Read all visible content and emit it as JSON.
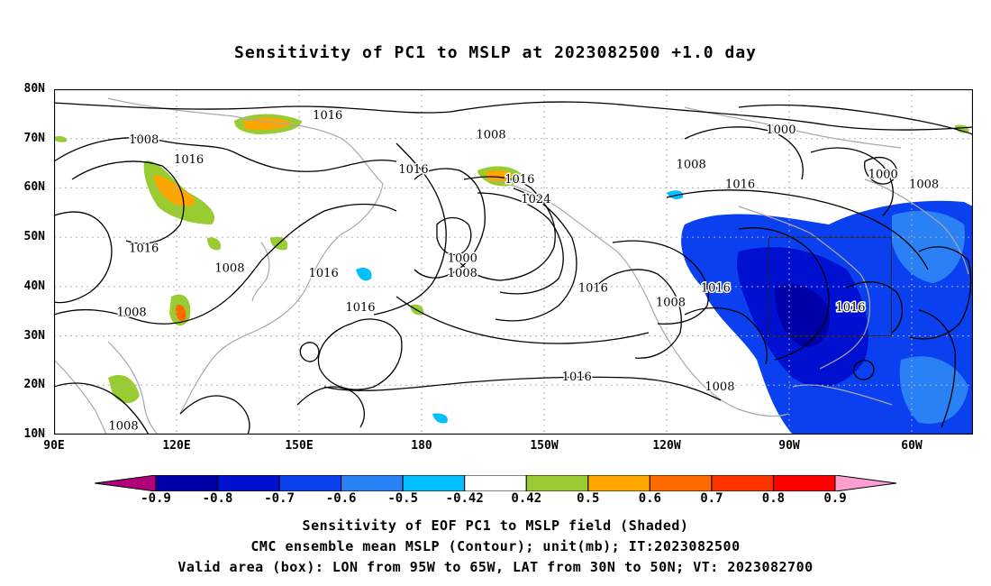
{
  "title": "Sensitivity of PC1 to MSLP at 2023082500 +1.0 day",
  "lat_labels": [
    "80N",
    "70N",
    "60N",
    "50N",
    "40N",
    "30N",
    "20N",
    "10N"
  ],
  "lat_values": [
    80,
    70,
    60,
    50,
    40,
    30,
    20,
    10
  ],
  "lon_labels": [
    "90E",
    "120E",
    "150E",
    "180",
    "150W",
    "120W",
    "90W",
    "60W"
  ],
  "lon_values": [
    90,
    120,
    150,
    180,
    210,
    240,
    270,
    300
  ],
  "contour_labels": [
    {
      "text": "1016",
      "lon": 157,
      "lat": 74
    },
    {
      "text": "1008",
      "lon": 112,
      "lat": 69
    },
    {
      "text": "1016",
      "lon": 123,
      "lat": 65
    },
    {
      "text": "1008",
      "lon": 197,
      "lat": 70
    },
    {
      "text": "1016",
      "lon": 178,
      "lat": 63
    },
    {
      "text": "1016",
      "lon": 204,
      "lat": 61
    },
    {
      "text": "1024",
      "lon": 208,
      "lat": 57
    },
    {
      "text": "1008",
      "lon": 246,
      "lat": 64
    },
    {
      "text": "1000",
      "lon": 268,
      "lat": 71
    },
    {
      "text": "1000",
      "lon": 293,
      "lat": 62
    },
    {
      "text": "1008",
      "lon": 303,
      "lat": 60
    },
    {
      "text": "1016",
      "lon": 258,
      "lat": 60
    },
    {
      "text": "1016",
      "lon": 112,
      "lat": 47
    },
    {
      "text": "1008",
      "lon": 133,
      "lat": 43
    },
    {
      "text": "1016",
      "lon": 156,
      "lat": 42
    },
    {
      "text": "1000",
      "lon": 190,
      "lat": 45
    },
    {
      "text": "1008",
      "lon": 190,
      "lat": 42
    },
    {
      "text": "1016",
      "lon": 222,
      "lat": 39
    },
    {
      "text": "1016",
      "lon": 252,
      "lat": 39
    },
    {
      "text": "1008",
      "lon": 241,
      "lat": 36
    },
    {
      "text": "1008",
      "lon": 109,
      "lat": 34
    },
    {
      "text": "1016",
      "lon": 165,
      "lat": 35
    },
    {
      "text": "1016",
      "lon": 285,
      "lat": 35
    },
    {
      "text": "1016",
      "lon": 218,
      "lat": 21
    },
    {
      "text": "1008",
      "lon": 253,
      "lat": 19
    },
    {
      "text": "1008",
      "lon": 107,
      "lat": 11
    }
  ],
  "valid_box": {
    "lon_min": 265,
    "lon_max": 295,
    "lat_min": 30,
    "lat_max": 50
  },
  "colorbar": {
    "colors": [
      "#b0007a",
      "#0000a8",
      "#0010d0",
      "#0a40f0",
      "#2a80f5",
      "#00c0ff",
      "#ffffff",
      "#99cc33",
      "#ffa500",
      "#ff6a00",
      "#ff3300",
      "#ff0000",
      "#ff9ecf"
    ],
    "labels": [
      "-0.9",
      "-0.8",
      "-0.7",
      "-0.6",
      "-0.5",
      "-0.42",
      "0.42",
      "0.5",
      "0.6",
      "0.7",
      "0.8",
      "0.9"
    ]
  },
  "footer": {
    "line1": "Sensitivity of EOF PC1 to MSLP field (Shaded)",
    "line2": "CMC ensemble mean MSLP (Contour); unit(mb); IT:2023082500",
    "line3": "Valid area (box): LON from 95W to 65W, LAT from 30N to 50N; VT: 2023082700"
  }
}
